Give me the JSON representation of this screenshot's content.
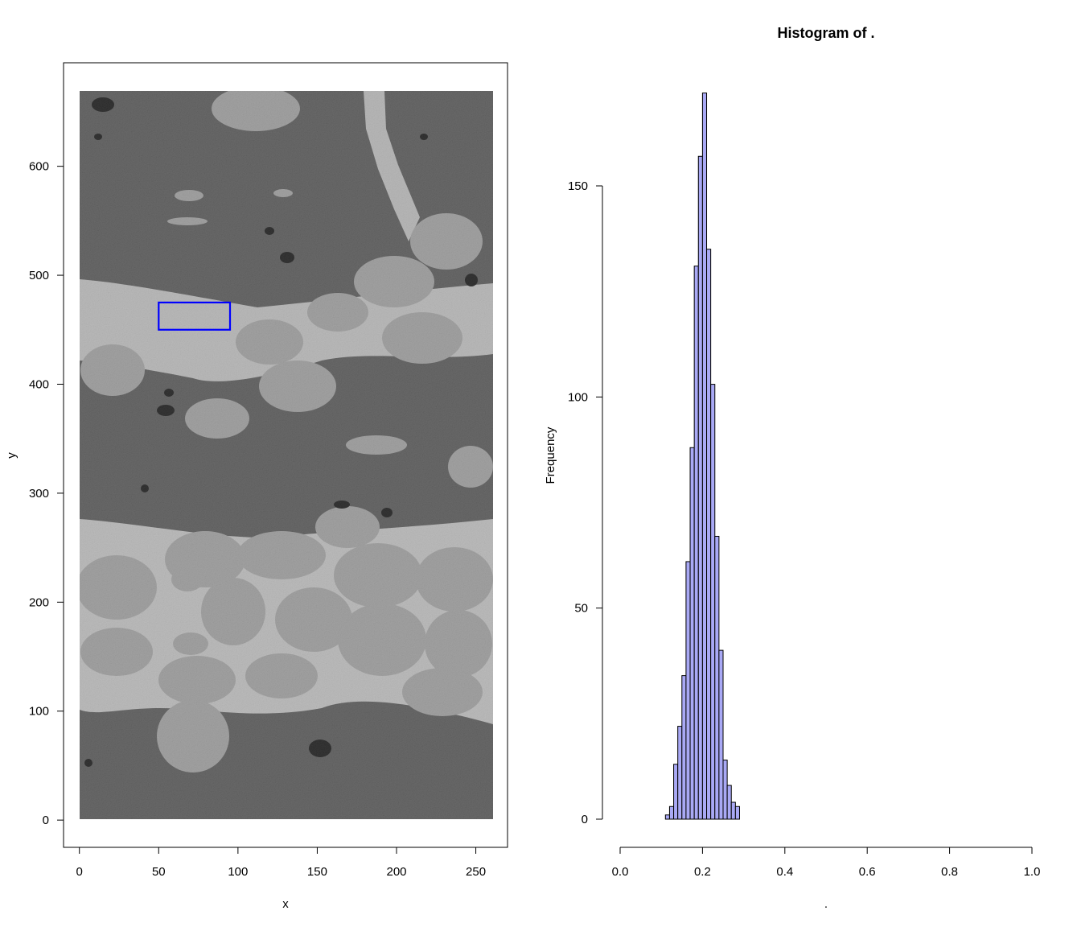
{
  "colors": {
    "roi_rectangle": "#0000ff",
    "bar_fill": "#a9a9f5",
    "bar_stroke": "#000000",
    "image_dark": "#5a5a5a",
    "image_light": "#d8d8d8"
  },
  "chart_data": [
    {
      "type": "image",
      "title": "",
      "xlabel": "x",
      "ylabel": "y",
      "xlim": [
        -10,
        270
      ],
      "ylim": [
        -25,
        695
      ],
      "image_extent": {
        "x": [
          1,
          260
        ],
        "y": [
          1,
          668
        ]
      },
      "x_ticks": [
        "0",
        "50",
        "100",
        "150",
        "200",
        "250"
      ],
      "y_ticks": [
        "0",
        "100",
        "200",
        "300",
        "400",
        "500",
        "600"
      ],
      "roi_rectangle": {
        "x": [
          50,
          95
        ],
        "y": [
          450,
          475
        ]
      }
    },
    {
      "type": "bar",
      "title": "Histogram of .",
      "xlabel": ".",
      "ylabel": "Frequency",
      "xlim": [
        0,
        1
      ],
      "ylim": [
        0,
        175
      ],
      "x_ticks": [
        "0.0",
        "0.2",
        "0.4",
        "0.6",
        "0.8",
        "1.0"
      ],
      "y_ticks": [
        "0",
        "50",
        "100",
        "150"
      ],
      "bin_width": 0.01,
      "bin_starts": [
        0.11,
        0.12,
        0.13,
        0.14,
        0.15,
        0.16,
        0.17,
        0.18,
        0.19,
        0.2,
        0.21,
        0.22,
        0.23,
        0.24,
        0.25,
        0.26,
        0.27,
        0.28
      ],
      "counts": [
        1,
        3,
        13,
        22,
        34,
        61,
        88,
        131,
        157,
        172,
        135,
        103,
        67,
        40,
        14,
        8,
        4,
        3
      ]
    }
  ]
}
